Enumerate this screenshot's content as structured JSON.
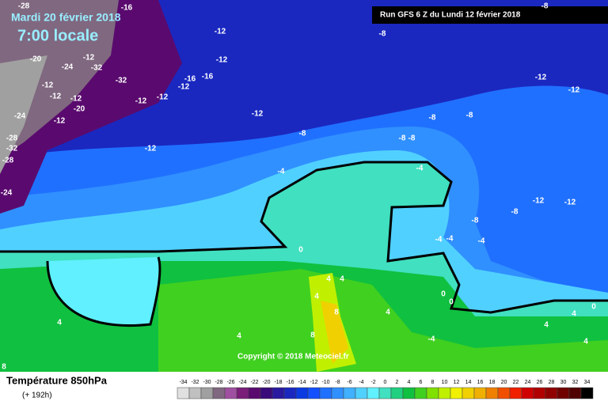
{
  "header": {
    "date": "Mardi 20 février 2018",
    "time": "7:00 locale",
    "run": "Run GFS 6 Z du Lundi 12 février 2018"
  },
  "copyright": "Copyright © 2018 Meteociel.fr",
  "footer": {
    "title": "Température 850hPa",
    "lead": "(+ 192h)"
  },
  "contour_labels": [
    -28,
    -16,
    -20,
    -24,
    -12,
    -32,
    -32,
    -12,
    -12,
    -20,
    -12,
    -24,
    -12,
    -28,
    -32,
    -28,
    -24,
    -12,
    -12,
    -16,
    -16,
    -12,
    -12,
    -12,
    -12,
    -12,
    -8,
    -8,
    -8,
    -8,
    -8,
    -8,
    -8,
    -12,
    -12,
    -4,
    -4,
    -12,
    -12,
    -8,
    -8,
    -4,
    -4,
    -4,
    0,
    4,
    4,
    4,
    8,
    4,
    4,
    4,
    -4,
    0,
    0,
    0,
    4,
    4,
    4,
    8,
    8
  ],
  "scale": {
    "values": [
      -34,
      -32,
      -30,
      -28,
      -26,
      -24,
      -22,
      -20,
      -18,
      -16,
      -14,
      -12,
      -10,
      -8,
      -6,
      -4,
      -2,
      0,
      2,
      4,
      6,
      8,
      10,
      12,
      14,
      16,
      18,
      20,
      22,
      24,
      26,
      28,
      30,
      32,
      34
    ],
    "colors": [
      "#e0e0e0",
      "#c0c0c0",
      "#a0a0a0",
      "#806880",
      "#a050a0",
      "#7a1e7a",
      "#5a0a6e",
      "#3a0a7a",
      "#2a1aa0",
      "#1a28c0",
      "#0a3ae0",
      "#1450ff",
      "#2070ff",
      "#3090ff",
      "#40b0ff",
      "#50d0ff",
      "#60f0ff",
      "#40e0c0",
      "#20d080",
      "#10c040",
      "#40d020",
      "#80e000",
      "#c0f000",
      "#f0f000",
      "#f0d000",
      "#f0b000",
      "#f08000",
      "#f05000",
      "#f02000",
      "#d00000",
      "#b00000",
      "#900000",
      "#700000",
      "#500000",
      "#000000"
    ]
  }
}
